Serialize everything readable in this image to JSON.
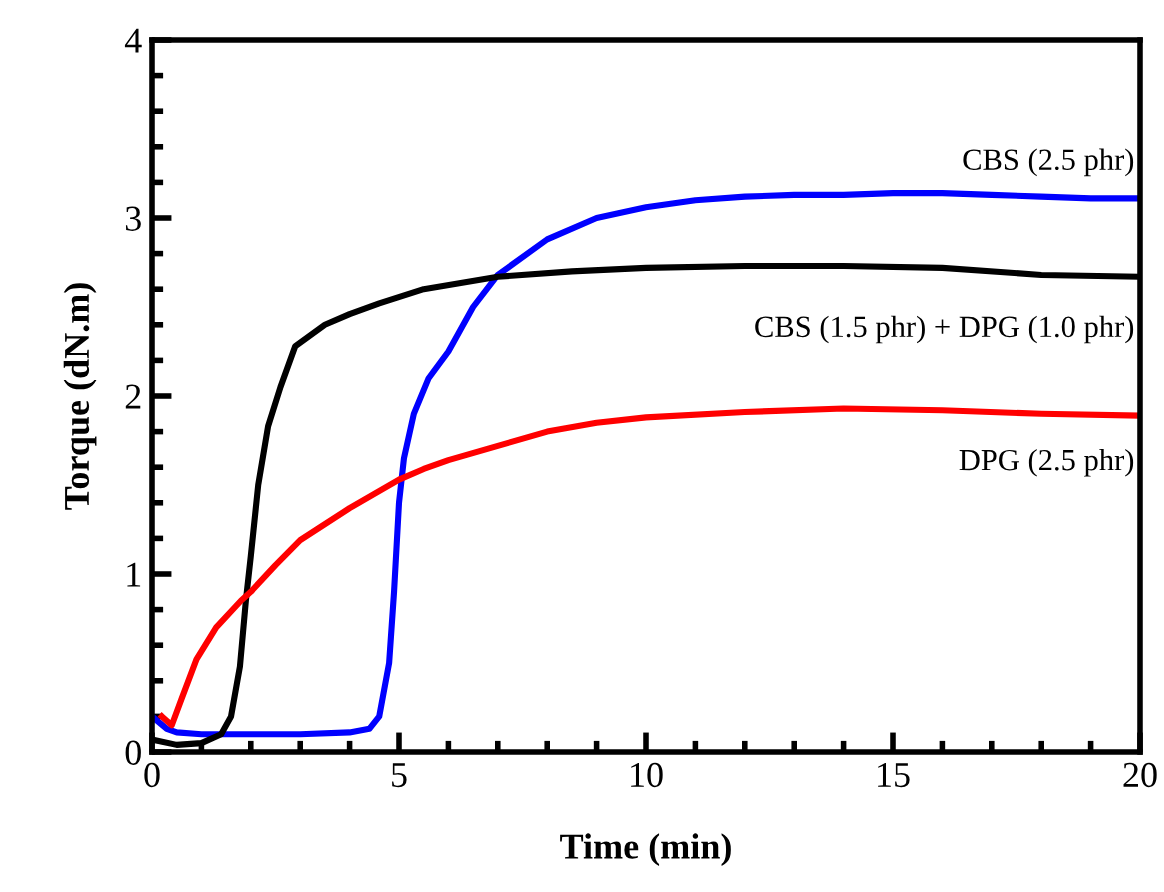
{
  "chart_data": {
    "type": "line",
    "xlabel": "Time (min)",
    "ylabel": "Torque (dN.m)",
    "xlim": [
      0,
      20
    ],
    "ylim": [
      0,
      4
    ],
    "xticks": [
      0,
      {
        "value": 1,
        "label": null
      },
      {
        "value": 2,
        "label": null
      },
      {
        "value": 3,
        "label": null
      },
      {
        "value": 4,
        "label": null
      },
      5,
      {
        "value": 6,
        "label": null
      },
      {
        "value": 7,
        "label": null
      },
      {
        "value": 8,
        "label": null
      },
      {
        "value": 9,
        "label": null
      },
      10,
      {
        "value": 11,
        "label": null
      },
      {
        "value": 12,
        "label": null
      },
      {
        "value": 13,
        "label": null
      },
      {
        "value": 14,
        "label": null
      },
      15,
      {
        "value": 16,
        "label": null
      },
      {
        "value": 17,
        "label": null
      },
      {
        "value": 18,
        "label": null
      },
      {
        "value": 19,
        "label": null
      },
      20
    ],
    "yticks": [
      0,
      {
        "value": 0.2,
        "label": null
      },
      {
        "value": 0.4,
        "label": null
      },
      {
        "value": 0.6,
        "label": null
      },
      {
        "value": 0.8,
        "label": null
      },
      1,
      {
        "value": 1.2,
        "label": null
      },
      {
        "value": 1.4,
        "label": null
      },
      {
        "value": 1.6,
        "label": null
      },
      {
        "value": 1.8,
        "label": null
      },
      2,
      {
        "value": 2.2,
        "label": null
      },
      {
        "value": 2.4,
        "label": null
      },
      {
        "value": 2.6,
        "label": null
      },
      {
        "value": 2.8,
        "label": null
      },
      3,
      {
        "value": 3.2,
        "label": null
      },
      {
        "value": 3.4,
        "label": null
      },
      {
        "value": 3.6,
        "label": null
      },
      {
        "value": 3.8,
        "label": null
      },
      4
    ],
    "grid": false,
    "legend": false,
    "marker": "none",
    "line_style": "solid",
    "series": [
      {
        "name": "CBS (2.5 phr)",
        "color": "#0000ff",
        "x": [
          0,
          0.3,
          0.5,
          1,
          2,
          3,
          4,
          4.4,
          4.6,
          4.8,
          4.9,
          5.0,
          5.1,
          5.3,
          5.6,
          6,
          6.5,
          7,
          8,
          9,
          10,
          11,
          12,
          13,
          14,
          15,
          16,
          17,
          18,
          19,
          20
        ],
        "values": [
          0.2,
          0.13,
          0.11,
          0.1,
          0.1,
          0.1,
          0.11,
          0.13,
          0.2,
          0.5,
          0.9,
          1.4,
          1.65,
          1.9,
          2.1,
          2.25,
          2.5,
          2.68,
          2.88,
          3.0,
          3.06,
          3.1,
          3.12,
          3.13,
          3.13,
          3.14,
          3.14,
          3.13,
          3.12,
          3.11,
          3.11
        ]
      },
      {
        "name": "CBS (1.5 phr) + DPG (1.0 phr)",
        "color": "#000000",
        "x": [
          0,
          0.5,
          1,
          1.4,
          1.6,
          1.78,
          1.9,
          2.0,
          2.15,
          2.35,
          2.6,
          2.9,
          3.5,
          4,
          4.6,
          5.5,
          7,
          8.5,
          10,
          12,
          14,
          16,
          18,
          20
        ],
        "values": [
          0.07,
          0.04,
          0.05,
          0.1,
          0.2,
          0.48,
          0.85,
          1.1,
          1.5,
          1.83,
          2.05,
          2.28,
          2.4,
          2.46,
          2.52,
          2.6,
          2.67,
          2.7,
          2.72,
          2.73,
          2.73,
          2.72,
          2.68,
          2.67
        ]
      },
      {
        "name": "DPG (2.5 phr)",
        "color": "#ff0000",
        "x": [
          0.2,
          0.4,
          0.6,
          0.9,
          1.3,
          1.8,
          2,
          2.5,
          3,
          3.5,
          4,
          4.5,
          5,
          5.5,
          6,
          7,
          8,
          9,
          10,
          12,
          14,
          16,
          18,
          20
        ],
        "values": [
          0.2,
          0.15,
          0.3,
          0.52,
          0.7,
          0.85,
          0.9,
          1.05,
          1.19,
          1.28,
          1.37,
          1.45,
          1.53,
          1.59,
          1.64,
          1.72,
          1.8,
          1.85,
          1.88,
          1.91,
          1.93,
          1.92,
          1.9,
          1.89
        ]
      }
    ]
  }
}
